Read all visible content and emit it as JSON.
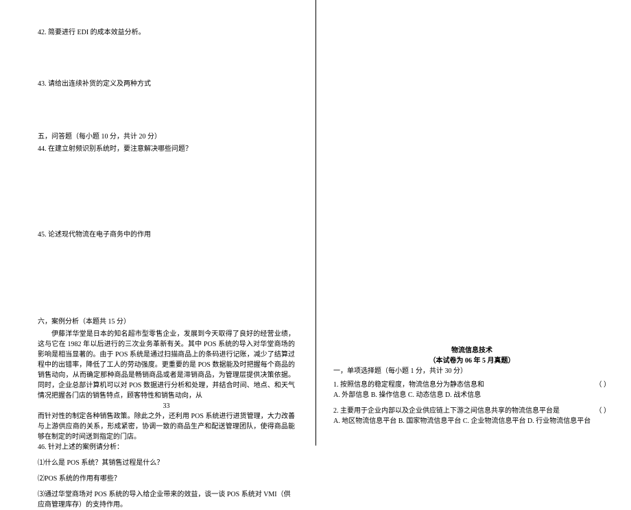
{
  "left": {
    "q42": "42. 简要进行 EDI 的成本效益分析。",
    "q43": "43. 请给出连续补货的定义及两种方式",
    "section5_header": "五，问答题（每小题 10 分，共计 20 分）",
    "q44": "44. 在建立射频识别系统时，要注意解决哪些问题？",
    "q45": "45. 论述现代物流在电子商务中的作用",
    "section6_header": "六，案例分析（本题共 15 分）",
    "case_p1": "伊藤洋华堂是日本的知名超市型零售企业，发展到今天取得了良好的经营业绩，这与它在 1982 年以后进行的三次业务革新有关。其中 POS 系统的导入对华堂商场的影响是相当显著的。由于 POS 系统是通过扫描商品上的条码进行记账，减少了结算过程中的出错率，降低了工人的劳动强度。更重要的是 POS 数据能及时把握每个商品的销售动向，从而确定那种商品是畅销商品或者是滞销商品，为管理层提供决策依据。同时，企业总部计算机可以对 POS 数据进行分析和处理，并结合时间、地点、和天气情况把握各门店的销售特点，顾客特性和销售动向，从",
    "page_num": "33",
    "case_p2": "而针对性的制定各种销售政策。除此之外，还利用 POS 系统进行进货管理，大力改善与上游供应商的关系，形成紧密，协调一致的商品生产和配送管理团队，使得商品能够在制定的时间送到指定的门店。",
    "q46": "46. 针对上述的案例请分析：",
    "q46_1": "⑴什么是 POS 系统？其销售过程是什么？",
    "q46_2": "⑵POS 系统的作用有哪些？",
    "q46_3": "⑶通过华堂商场对 POS 系统的导入给企业带来的效益，谈一谈 POS 系统对 VMI（供应商管理库存）的支持作用。"
  },
  "right": {
    "title": "物流信息技术",
    "subtitle": "（本试卷为 06 年 5 月真题）",
    "section1_header": "一，单项选择题（每小题 1 分，共计 30 分）",
    "q1": "1. 按照信息的稳定程度，物流信息分为静态信息和",
    "q1_opts": "A. 外部信息        B. 操作信息        C. 动态信息        D. 战术信息",
    "q2": "2. 主要用于企业内部以及企业供应链上下游之间信息共享的物流信息平台是",
    "q2_opts": "A. 地区物流信息平台 B. 国家物流信息平台 C. 企业物流信息平台 D. 行业物流信息平台",
    "paren": "（   ）"
  },
  "colors": {
    "text": "#000000",
    "background": "#ffffff",
    "border": "#000000"
  },
  "fonts": {
    "body_size": 10,
    "family": "SimSun"
  }
}
